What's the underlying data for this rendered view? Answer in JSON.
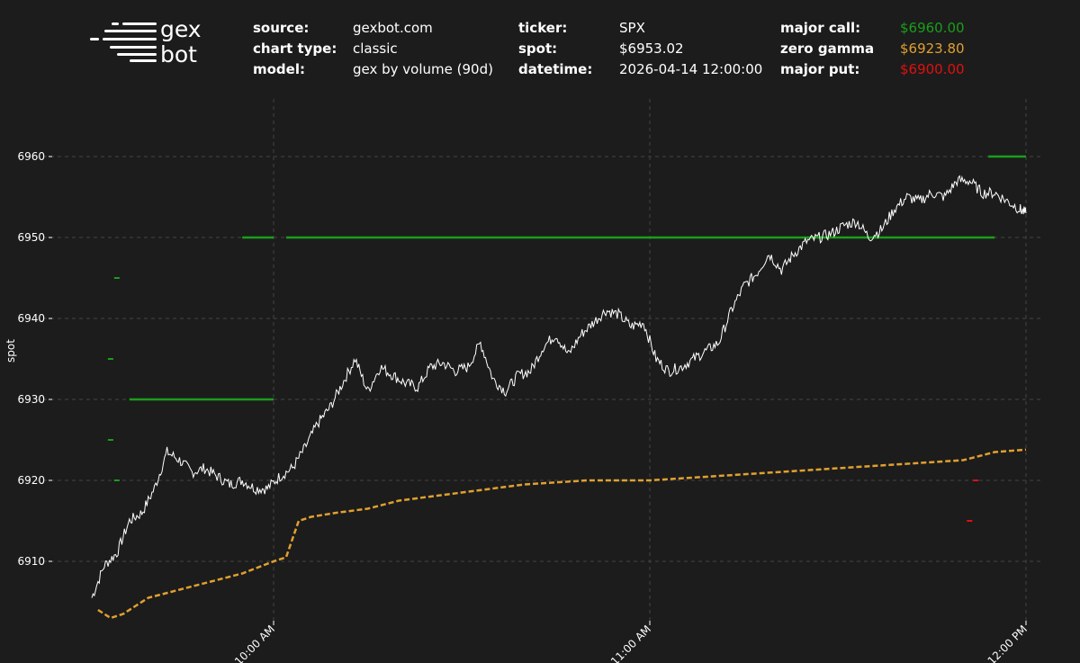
{
  "header": {
    "logo_top": "gex",
    "logo_bottom": "bot",
    "source_label": "source:",
    "source_value": "gexbot.com",
    "chart_type_label": "chart type:",
    "chart_type_value": "classic",
    "model_label": "model:",
    "model_value": "gex by volume (90d)",
    "ticker_label": "ticker:",
    "ticker_value": "SPX",
    "spot_label": "spot:",
    "spot_value": "$6953.02",
    "datetime_label": "datetime:",
    "datetime_value": "2026-04-14 12:00:00",
    "major_call_label": "major call:",
    "major_call_value": "$6960.00",
    "zero_gamma_label": "zero gamma",
    "zero_gamma_value": "$6923.80",
    "major_put_label": "major put:",
    "major_put_value": "$6900.00"
  },
  "colors": {
    "background": "#1c1c1c",
    "spot": "#ffffff",
    "major_call": "#1a9e1a",
    "zero_gamma": "#e0a030",
    "major_put": "#e01010",
    "grid": "#444444"
  },
  "chart_data": {
    "type": "line",
    "title": "",
    "xlabel": "",
    "ylabel": "spot",
    "x_time_range": [
      "09:30",
      "12:00"
    ],
    "ylim": [
      6902,
      6966
    ],
    "yticks": [
      6910,
      6920,
      6930,
      6940,
      6950,
      6960
    ],
    "xticks": [
      {
        "time": "10:00",
        "label": "10:00 AM"
      },
      {
        "time": "11:00",
        "label": "11:00 AM"
      },
      {
        "time": "12:00",
        "label": "12:00 PM"
      }
    ],
    "grid": true,
    "series": [
      {
        "name": "spot",
        "x": [
          "09:31",
          "09:33",
          "09:35",
          "09:37",
          "09:39",
          "09:41",
          "09:43",
          "09:45",
          "09:47",
          "09:49",
          "09:51",
          "09:53",
          "09:55",
          "09:57",
          "09:59",
          "10:01",
          "10:03",
          "10:05",
          "10:07",
          "10:09",
          "10:11",
          "10:13",
          "10:15",
          "10:17",
          "10:19",
          "10:21",
          "10:23",
          "10:25",
          "10:27",
          "10:29",
          "10:31",
          "10:33",
          "10:35",
          "10:37",
          "10:39",
          "10:41",
          "10:43",
          "10:45",
          "10:47",
          "10:49",
          "10:51",
          "10:53",
          "10:55",
          "10:57",
          "10:59",
          "11:01",
          "11:03",
          "11:05",
          "11:07",
          "11:09",
          "11:11",
          "11:13",
          "11:15",
          "11:17",
          "11:19",
          "11:21",
          "11:23",
          "11:25",
          "11:27",
          "11:29",
          "11:31",
          "11:33",
          "11:35",
          "11:37",
          "11:39",
          "11:41",
          "11:43",
          "11:45",
          "11:47",
          "11:49",
          "11:51",
          "11:53",
          "11:55",
          "11:57",
          "11:59",
          "12:00"
        ],
        "values": [
          6905.5,
          6909.5,
          6911.0,
          6915.0,
          6916.0,
          6919.0,
          6923.5,
          6922.5,
          6921.0,
          6921.5,
          6920.5,
          6919.5,
          6920.0,
          6919.0,
          6919.0,
          6920.5,
          6921.5,
          6924.0,
          6927.0,
          6929.0,
          6932.0,
          6935.0,
          6931.0,
          6934.0,
          6933.0,
          6932.0,
          6931.5,
          6934.0,
          6934.5,
          6933.5,
          6934.0,
          6937.0,
          6932.5,
          6931.0,
          6933.0,
          6933.5,
          6936.5,
          6938.0,
          6935.5,
          6938.0,
          6939.5,
          6941.0,
          6940.5,
          6939.0,
          6939.5,
          6935.0,
          6933.5,
          6934.0,
          6935.0,
          6936.0,
          6937.0,
          6941.0,
          6944.0,
          6945.5,
          6948.0,
          6946.0,
          6948.0,
          6949.5,
          6950.0,
          6950.5,
          6951.5,
          6952.0,
          6950.0,
          6951.0,
          6953.5,
          6955.0,
          6954.5,
          6955.5,
          6955.0,
          6957.0,
          6957.0,
          6955.5,
          6955.5,
          6954.5,
          6953.5,
          6953.0
        ]
      },
      {
        "name": "major call",
        "segments": [
          {
            "from": "09:37",
            "to": "10:00",
            "value": 6930
          },
          {
            "from": "09:55",
            "to": "10:00",
            "value": 6950
          },
          {
            "from": "10:02",
            "to": "11:55",
            "value": 6950
          },
          {
            "from": "11:54",
            "to": "12:00",
            "value": 6960
          }
        ],
        "scatter": [
          {
            "time": "09:35",
            "value": 6945
          },
          {
            "time": "09:34",
            "value": 6935
          },
          {
            "time": "09:34",
            "value": 6925
          },
          {
            "time": "09:35",
            "value": 6920
          }
        ]
      },
      {
        "name": "zero gamma",
        "x": [
          "09:32",
          "09:34",
          "09:36",
          "09:38",
          "09:40",
          "09:45",
          "09:50",
          "09:55",
          "10:00",
          "10:02",
          "10:04",
          "10:06",
          "10:10",
          "10:15",
          "10:20",
          "10:25",
          "10:30",
          "10:40",
          "10:50",
          "11:00",
          "11:10",
          "11:20",
          "11:30",
          "11:40",
          "11:50",
          "11:55",
          "12:00"
        ],
        "values": [
          6904.0,
          6903.0,
          6903.5,
          6904.5,
          6905.5,
          6906.5,
          6907.5,
          6908.5,
          6910.0,
          6910.5,
          6915.0,
          6915.5,
          6916.0,
          6916.5,
          6917.5,
          6918.0,
          6918.5,
          6919.5,
          6920.0,
          6920.0,
          6920.5,
          6921.0,
          6921.5,
          6922.0,
          6922.5,
          6923.5,
          6923.8
        ]
      },
      {
        "name": "major put",
        "scatter": [
          {
            "time": "11:52",
            "value": 6920
          },
          {
            "time": "11:51",
            "value": 6915
          }
        ]
      }
    ]
  }
}
